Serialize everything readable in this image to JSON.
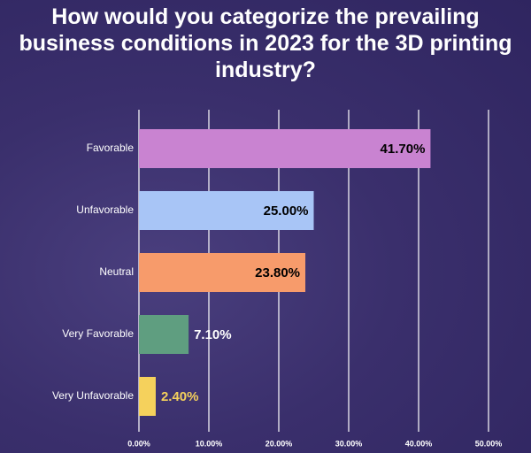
{
  "chart_data": {
    "type": "bar",
    "orientation": "horizontal",
    "title": "How would you categorize the prevailing business conditions in 2023 for the 3D printing industry?",
    "categories": [
      "Favorable",
      "Unfavorable",
      "Neutral",
      "Very Favorable",
      "Very Unfavorable"
    ],
    "values": [
      41.7,
      25.0,
      23.8,
      7.1,
      2.4
    ],
    "value_labels": [
      "41.70%",
      "25.00%",
      "23.80%",
      "7.10%",
      "2.40%"
    ],
    "colors": [
      "#c983d1",
      "#a8c5f6",
      "#f79b6b",
      "#5f9e80",
      "#f5d15c"
    ],
    "value_label_colors": [
      "#000000",
      "#000000",
      "#000000",
      "#ffffff",
      "#f5d15c"
    ],
    "xlim": [
      0,
      50
    ],
    "xticks": [
      {
        "value": 0,
        "label": "0.00%"
      },
      {
        "value": 10,
        "label": "10.00%"
      },
      {
        "value": 20,
        "label": "20.00%"
      },
      {
        "value": 30,
        "label": "30.00%"
      },
      {
        "value": 40,
        "label": "40.00%"
      },
      {
        "value": 50,
        "label": "50.00%"
      }
    ],
    "grid": true
  }
}
